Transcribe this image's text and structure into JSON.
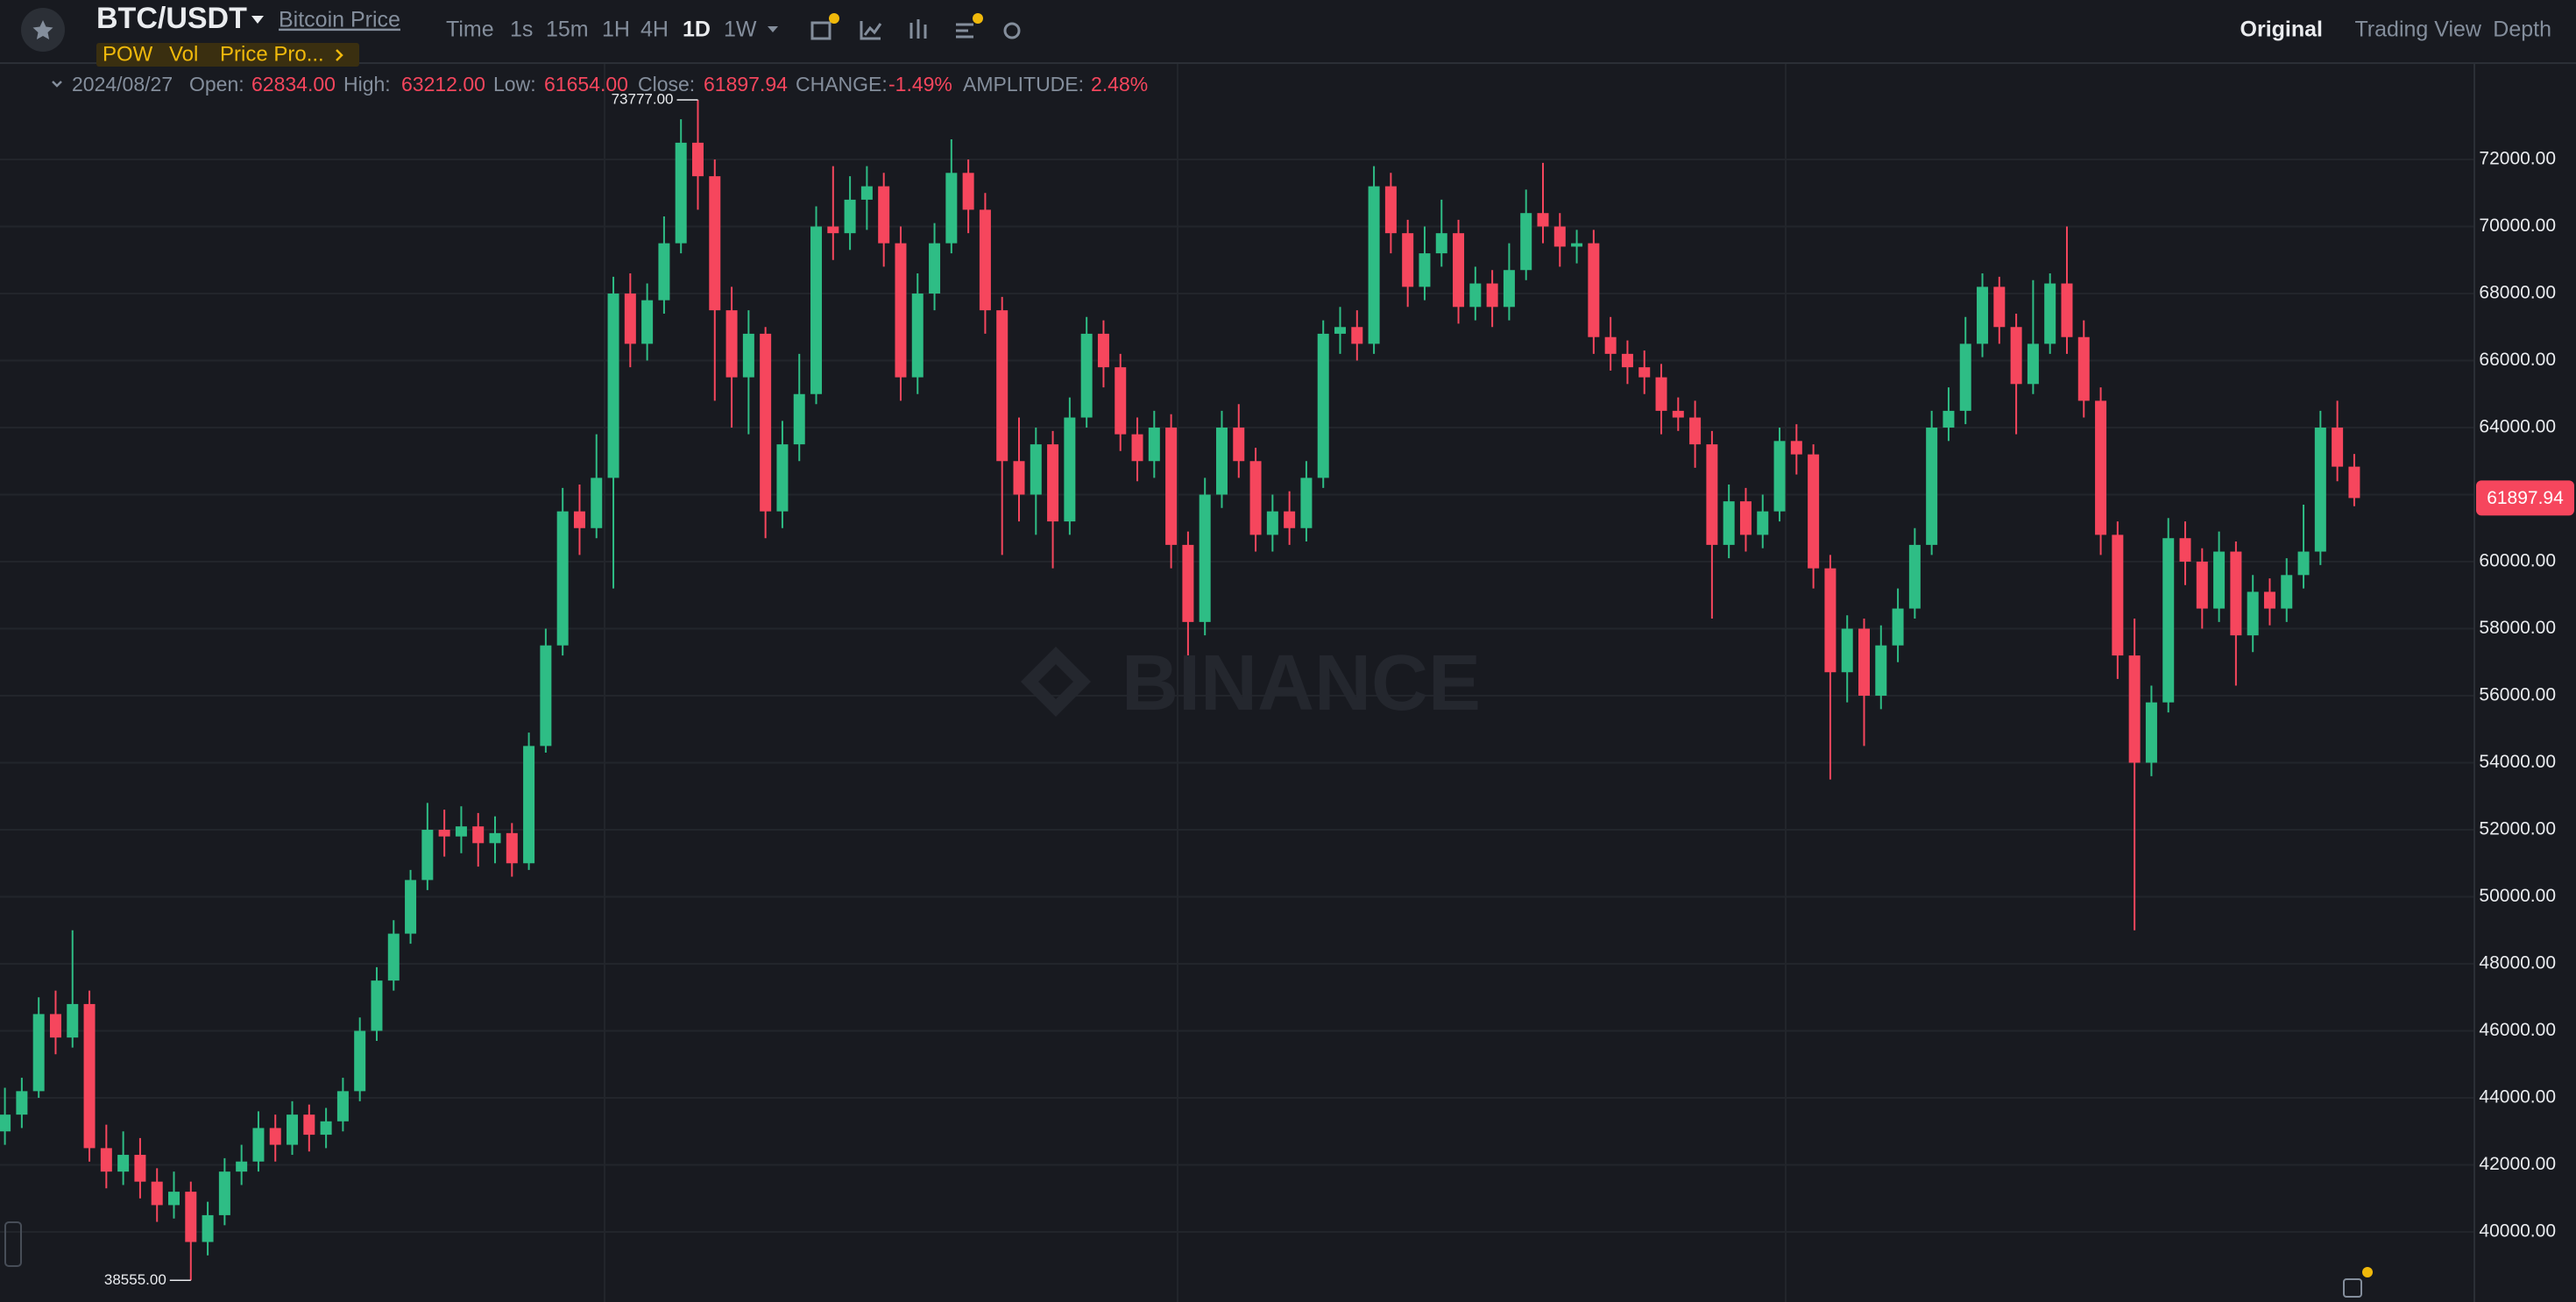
{
  "header": {
    "pair": "BTC/USDT",
    "link": "Bitcoin Price",
    "tags": [
      "POW",
      "Vol",
      "Price Pro..."
    ],
    "intervals": [
      "Time",
      "1s",
      "15m",
      "1H",
      "4H",
      "1D",
      "1W"
    ],
    "views": [
      "Original",
      "Trading View",
      "Depth"
    ]
  },
  "info_bar": {
    "date": "2024/08/27",
    "fields": [
      {
        "label": "Open:",
        "value": "62834.00"
      },
      {
        "label": "High:",
        "value": "63212.00"
      },
      {
        "label": "Low:",
        "value": "61654.00"
      },
      {
        "label": "Close:",
        "value": "61897.94"
      },
      {
        "label": "CHANGE:",
        "value": "-1.49%"
      },
      {
        "label": "AMPLITUDE:",
        "value": "2.48%"
      }
    ]
  },
  "watermark": "BINANCE",
  "chart_data": {
    "type": "candlestick",
    "up_color": "#2ebd85",
    "down_color": "#f6465d",
    "grid": true,
    "ylim": [
      37909,
      74876
    ],
    "yticks": [
      {
        "value": 40000,
        "label": "40000.00"
      },
      {
        "value": 42000,
        "label": "42000.00"
      },
      {
        "value": 44000,
        "label": "44000.00"
      },
      {
        "value": 46000,
        "label": "46000.00"
      },
      {
        "value": 48000,
        "label": "48000.00"
      },
      {
        "value": 50000,
        "label": "50000.00"
      },
      {
        "value": 52000,
        "label": "52000.00"
      },
      {
        "value": 54000,
        "label": "54000.00"
      },
      {
        "value": 56000,
        "label": "56000.00"
      },
      {
        "value": 58000,
        "label": "58000.00"
      },
      {
        "value": 60000,
        "label": "60000.00"
      },
      {
        "value": 62000,
        "label": "62000.00"
      },
      {
        "value": 64000,
        "label": "64000.00"
      },
      {
        "value": 66000,
        "label": "66000.00"
      },
      {
        "value": 68000,
        "label": "68000.00"
      },
      {
        "value": 70000,
        "label": "70000.00"
      },
      {
        "value": 72000,
        "label": "72000.00"
      }
    ],
    "max_label": {
      "value": 73777,
      "label": "73777.00"
    },
    "min_label": {
      "value": 38555,
      "label": "38555.00"
    },
    "last_price": {
      "value": 61897.94,
      "label": "61897.94"
    },
    "open": [
      43000,
      43500,
      44200,
      46500,
      45800,
      46800,
      42500,
      41800,
      42300,
      41500,
      40800,
      41200,
      39700,
      40500,
      41800,
      42100,
      43100,
      42600,
      43500,
      42900,
      43300,
      44200,
      46000,
      47500,
      48900,
      50500,
      52000,
      51800,
      52100,
      51600,
      51900,
      51000,
      54500,
      57500,
      61500,
      61000,
      62500,
      68000,
      66500,
      67800,
      69500,
      72500,
      71500,
      67500,
      65500,
      66800,
      61500,
      63500,
      65000,
      70000,
      69800,
      70800,
      71200,
      69500,
      65500,
      68000,
      69500,
      71600,
      70500,
      67500,
      63000,
      62000,
      63500,
      61200,
      64300,
      66800,
      65800,
      63800,
      63000,
      64000,
      60500,
      58200,
      62000,
      64000,
      63000,
      60800,
      61500,
      61000,
      62500,
      66800,
      67000,
      66500,
      71200,
      69800,
      68200,
      69200,
      69800,
      67600,
      68300,
      67600,
      68700,
      70400,
      70000,
      69400,
      69500,
      66700,
      66200,
      65800,
      65500,
      64500,
      64300,
      63500,
      60500,
      61800,
      60800,
      61500,
      63600,
      63200,
      59800,
      56700,
      58000,
      56000,
      57500,
      58600,
      60500,
      64000,
      64500,
      66500,
      68200,
      67000,
      65300,
      66500,
      68300,
      66700,
      64800,
      60800,
      57200,
      54000,
      55800,
      60700,
      60000,
      58600,
      60300,
      57800,
      59100,
      58600,
      59600,
      60300,
      64000,
      62834
    ],
    "high": [
      44300,
      44600,
      47000,
      47200,
      49000,
      47200,
      43200,
      43000,
      42800,
      41900,
      41800,
      41500,
      40900,
      42200,
      42600,
      43600,
      43500,
      43900,
      43800,
      43700,
      44600,
      46400,
      47900,
      49300,
      50800,
      52800,
      52600,
      52700,
      52500,
      52400,
      52200,
      54900,
      58000,
      62200,
      62300,
      63800,
      68500,
      68600,
      68300,
      70300,
      73200,
      73777,
      72000,
      68200,
      67500,
      67000,
      64200,
      66200,
      70600,
      71800,
      71500,
      71800,
      71600,
      70000,
      68600,
      70100,
      72600,
      72000,
      71000,
      67900,
      64300,
      64000,
      63900,
      64900,
      67300,
      67200,
      66200,
      64300,
      64500,
      64400,
      60900,
      62500,
      64500,
      64700,
      63400,
      62000,
      62100,
      63000,
      67200,
      67600,
      67500,
      71800,
      71600,
      70200,
      70000,
      70800,
      70200,
      68800,
      68700,
      69500,
      71100,
      71900,
      70400,
      69900,
      69900,
      67300,
      66600,
      66300,
      65900,
      64900,
      64800,
      63900,
      62300,
      62200,
      62000,
      64000,
      64100,
      63500,
      60200,
      58400,
      58300,
      58100,
      59200,
      61000,
      64500,
      65200,
      67300,
      68600,
      68500,
      67400,
      68400,
      68600,
      70000,
      67200,
      65200,
      61200,
      58300,
      56300,
      61300,
      61200,
      60400,
      60900,
      60600,
      59600,
      59500,
      60100,
      61700,
      64500,
      64800,
      63212
    ],
    "low": [
      42600,
      43100,
      44000,
      45300,
      45500,
      42100,
      41300,
      41400,
      41000,
      40300,
      40400,
      38555,
      39300,
      40200,
      41400,
      41800,
      42100,
      42300,
      42400,
      42500,
      43000,
      43900,
      45700,
      47200,
      48600,
      50200,
      51200,
      51300,
      50900,
      51000,
      50600,
      50800,
      54300,
      57200,
      60200,
      60700,
      59200,
      65800,
      66000,
      67400,
      69200,
      70500,
      64800,
      64000,
      63800,
      60700,
      61000,
      63000,
      64700,
      69000,
      69300,
      69900,
      68800,
      64800,
      65000,
      67500,
      69200,
      69800,
      66800,
      60200,
      61200,
      60800,
      59800,
      60800,
      64000,
      65200,
      63300,
      62400,
      62500,
      59800,
      56800,
      57800,
      61600,
      62500,
      60300,
      60300,
      60500,
      60600,
      62200,
      66200,
      66000,
      66200,
      69200,
      67600,
      67800,
      68800,
      67100,
      67200,
      67000,
      67200,
      68400,
      69500,
      68800,
      68900,
      66200,
      65700,
      65300,
      65000,
      63800,
      63900,
      62800,
      58300,
      60100,
      60300,
      60400,
      61200,
      62600,
      59200,
      53500,
      55800,
      54500,
      55600,
      57000,
      58300,
      60200,
      63600,
      64100,
      66100,
      66500,
      63800,
      65000,
      66200,
      66200,
      64300,
      60200,
      56500,
      49000,
      53600,
      55500,
      59300,
      58000,
      58200,
      56300,
      57300,
      58100,
      58200,
      59200,
      59900,
      62400,
      61654
    ],
    "close": [
      43500,
      44200,
      46500,
      45800,
      46800,
      42500,
      41800,
      42300,
      41500,
      40800,
      41200,
      39700,
      40500,
      41800,
      42100,
      43100,
      42600,
      43500,
      42900,
      43300,
      44200,
      46000,
      47500,
      48900,
      50500,
      52000,
      51800,
      52100,
      51600,
      51900,
      51000,
      54500,
      57500,
      61500,
      61000,
      62500,
      68000,
      66500,
      67800,
      69500,
      72500,
      71500,
      67500,
      65500,
      66800,
      61500,
      63500,
      65000,
      70000,
      69800,
      70800,
      71200,
      69500,
      65500,
      68000,
      69500,
      71600,
      70500,
      67500,
      63000,
      62000,
      63500,
      61200,
      64300,
      66800,
      65800,
      63800,
      63000,
      64000,
      60500,
      58200,
      62000,
      64000,
      63000,
      60800,
      61500,
      61000,
      62500,
      66800,
      67000,
      66500,
      71200,
      69800,
      68200,
      69200,
      69800,
      67600,
      68300,
      67600,
      68700,
      70400,
      70000,
      69400,
      69500,
      66700,
      66200,
      65800,
      65500,
      64500,
      64300,
      63500,
      60500,
      61800,
      60800,
      61500,
      63600,
      63200,
      59800,
      56700,
      58000,
      56000,
      57500,
      58600,
      60500,
      64000,
      64500,
      66500,
      68200,
      67000,
      65300,
      66500,
      68300,
      66700,
      64800,
      60800,
      57200,
      54000,
      55800,
      60700,
      60000,
      58600,
      60300,
      57800,
      59100,
      58600,
      59600,
      60300,
      64000,
      62834,
      61897.94
    ]
  }
}
